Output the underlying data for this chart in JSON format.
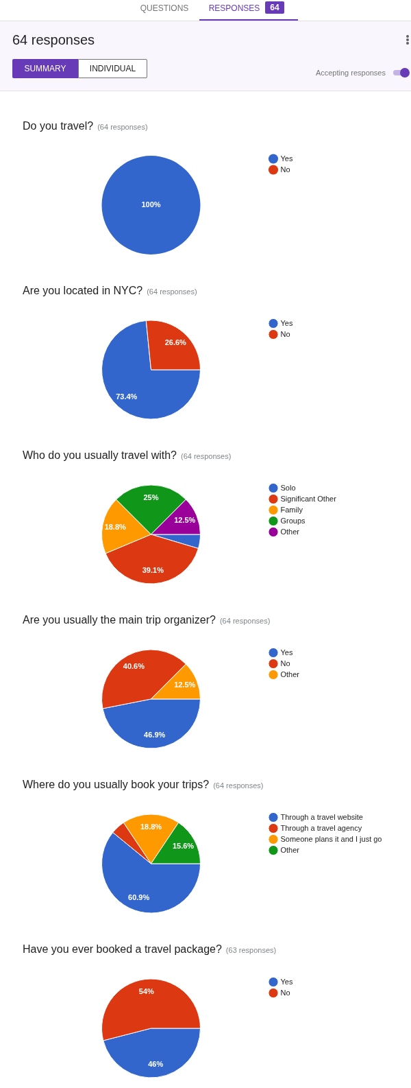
{
  "chart_data": [
    {
      "type": "other",
      "title": "64 responses",
      "annotations": [
        "QUESTIONS",
        "RESPONSES",
        "64",
        "SUMMARY",
        "INDIVIDUAL",
        "Accepting responses"
      ]
    },
    {
      "type": "pie",
      "title": "Do you travel?",
      "subtitle": "(64 responses)",
      "categories": [
        "Yes",
        "No"
      ],
      "values": [
        100,
        0
      ],
      "colors": [
        "#3366cc",
        "#dc3912"
      ],
      "value_labels": [
        "100%",
        null
      ],
      "legend": "right"
    },
    {
      "type": "pie",
      "title": "Are you located in NYC?",
      "subtitle": "(64 responses)",
      "categories": [
        "Yes",
        "No"
      ],
      "values": [
        73.4,
        26.6
      ],
      "colors": [
        "#3366cc",
        "#dc3912"
      ],
      "value_labels": [
        "73.4%",
        "26.6%"
      ],
      "legend": "right"
    },
    {
      "type": "pie",
      "title": "Who do you usually travel with?",
      "subtitle": "(64 responses)",
      "categories": [
        "Solo",
        "Significant Other",
        "Family",
        "Groups",
        "Other"
      ],
      "values": [
        4.6,
        39.1,
        18.8,
        25,
        12.5
      ],
      "colors": [
        "#3366cc",
        "#dc3912",
        "#ff9900",
        "#109618",
        "#990099"
      ],
      "value_labels": [
        null,
        "39.1%",
        "18.8%",
        "25%",
        "12.5%"
      ],
      "legend": "right"
    },
    {
      "type": "pie",
      "title": "Are you usually the main trip organizer?",
      "subtitle": "(64 responses)",
      "categories": [
        "Yes",
        "No",
        "Other"
      ],
      "values": [
        46.9,
        40.6,
        12.5
      ],
      "colors": [
        "#3366cc",
        "#dc3912",
        "#ff9900"
      ],
      "value_labels": [
        "46.9%",
        "40.6%",
        "12.5%"
      ],
      "legend": "right"
    },
    {
      "type": "pie",
      "title": "Where do you usually book your trips?",
      "subtitle": "(64 responses)",
      "categories": [
        "Through a travel website",
        "Through a travel agency",
        "Someone plans it and I just go",
        "Other"
      ],
      "values": [
        60.9,
        4.7,
        18.8,
        15.6
      ],
      "colors": [
        "#3366cc",
        "#dc3912",
        "#ff9900",
        "#109618"
      ],
      "value_labels": [
        "60.9%",
        null,
        "18.8%",
        "15.6%"
      ],
      "legend": "right"
    },
    {
      "type": "pie",
      "title": "Have you ever booked a travel package?",
      "subtitle": "(63 responses)",
      "categories": [
        "Yes",
        "No"
      ],
      "values": [
        46,
        54
      ],
      "colors": [
        "#3366cc",
        "#dc3912"
      ],
      "value_labels": [
        "46%",
        "54%"
      ],
      "legend": "right"
    }
  ]
}
